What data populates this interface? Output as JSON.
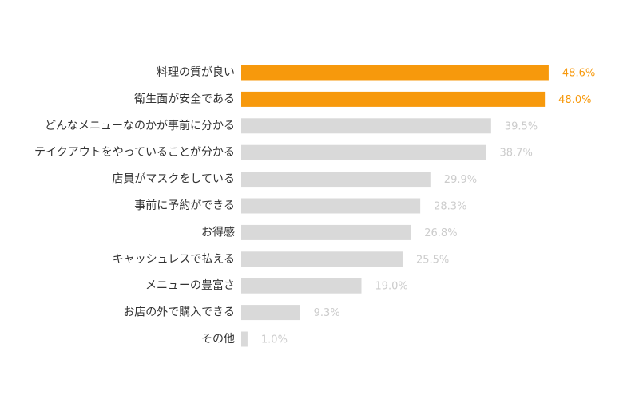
{
  "chart_data": {
    "type": "bar",
    "orientation": "horizontal",
    "title": "",
    "xlabel": "",
    "ylabel": "",
    "xlim": [
      0,
      100
    ],
    "grid": false,
    "legend": "none",
    "value_suffix": "%",
    "categories": [
      "料理の質が良い",
      "衛生面が安全である",
      "どんなメニューなのかが事前に分かる",
      "テイクアウトをやっていることが分かる",
      "店員がマスクをしている",
      "事前に予約ができる",
      "お得感",
      "キャッシュレスで払える",
      "メニューの豊富さ",
      "お店の外で購入できる",
      "その他"
    ],
    "values": [
      48.6,
      48.0,
      39.5,
      38.7,
      29.9,
      28.3,
      26.8,
      25.5,
      19.0,
      9.3,
      1.0
    ],
    "value_labels": [
      "48.6%",
      "48.0%",
      "39.5%",
      "38.7%",
      "29.9%",
      "28.3%",
      "26.8%",
      "25.5%",
      "19.0%",
      "9.3%",
      "1.0%"
    ],
    "highlighted_count": 2,
    "colors": {
      "highlight_bar": "#F7990C",
      "highlight_label": "#F7990C",
      "default_bar": "#D9D9D9",
      "default_label": "#CCCCCC",
      "category_text": "#333333"
    }
  }
}
